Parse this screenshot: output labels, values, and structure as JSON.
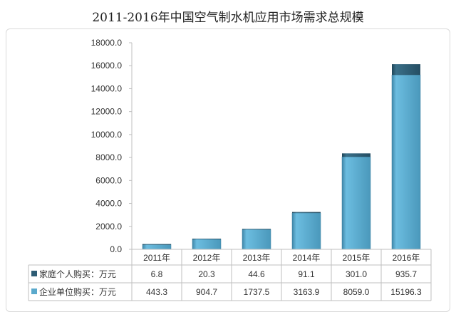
{
  "chart_data": {
    "type": "bar",
    "stacked": true,
    "title": "2011-2016年中国空气制水机应用市场需求总规模",
    "categories": [
      "2011年",
      "2012年",
      "2013年",
      "2014年",
      "2015年",
      "2016年"
    ],
    "ylim": [
      0,
      18000
    ],
    "yticks": [
      "0.0",
      "2000.0",
      "4000.0",
      "6000.0",
      "8000.0",
      "10000.0",
      "12000.0",
      "14000.0",
      "16000.0",
      "18000.0"
    ],
    "series": [
      {
        "name": "企业单位购买：万元",
        "values": [
          "443.3",
          "904.7",
          "1737.5",
          "3163.9",
          "8059.0",
          "15196.3"
        ],
        "color": "#5aa9cc"
      },
      {
        "name": "家庭个人购买：万元",
        "values": [
          "6.8",
          "20.3",
          "44.6",
          "91.1",
          "301.0",
          "935.7"
        ],
        "color": "#2d5c74"
      }
    ],
    "legend": "bottom-table"
  }
}
